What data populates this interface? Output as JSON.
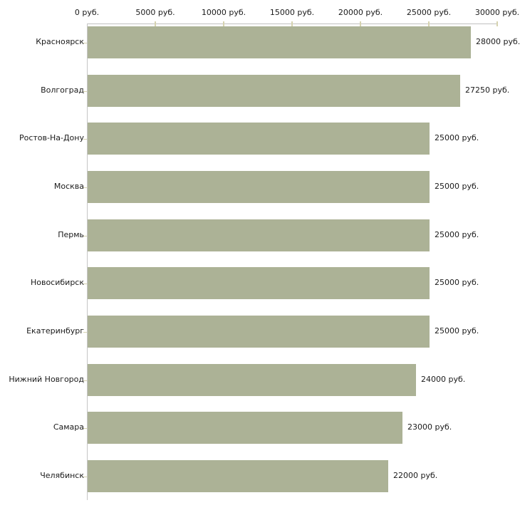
{
  "chart_data": {
    "type": "bar",
    "orientation": "horizontal",
    "categories": [
      "Красноярск",
      "Волгоград",
      "Ростов-На-Дону",
      "Москва",
      "Пермь",
      "Новосибирск",
      "Екатеринбург",
      "Нижний Новгород",
      "Самара",
      "Челябинск"
    ],
    "values": [
      28000,
      27250,
      25000,
      25000,
      25000,
      25000,
      25000,
      24000,
      23000,
      22000
    ],
    "value_labels": [
      "28000 руб.",
      "27250 руб.",
      "25000 руб.",
      "25000 руб.",
      "25000 руб.",
      "25000 руб.",
      "25000 руб.",
      "24000 руб.",
      "23000 руб.",
      "22000 руб."
    ],
    "x_ticks": [
      0,
      5000,
      10000,
      15000,
      20000,
      25000,
      30000
    ],
    "x_tick_labels": [
      "0 руб.",
      "5000 руб.",
      "10000 руб.",
      "15000 руб.",
      "20000 руб.",
      "25000 руб.",
      "30000 руб."
    ],
    "xlim": [
      0,
      30000
    ],
    "unit": "руб.",
    "title": "",
    "xlabel": "",
    "ylabel": "",
    "grid": false,
    "legend": false,
    "colors": {
      "bar": "#acb296",
      "axis_line": "#c0c0c0",
      "tick_mark": "#d6d3b0",
      "text": "#1a1a1a",
      "background": "#ffffff"
    }
  }
}
